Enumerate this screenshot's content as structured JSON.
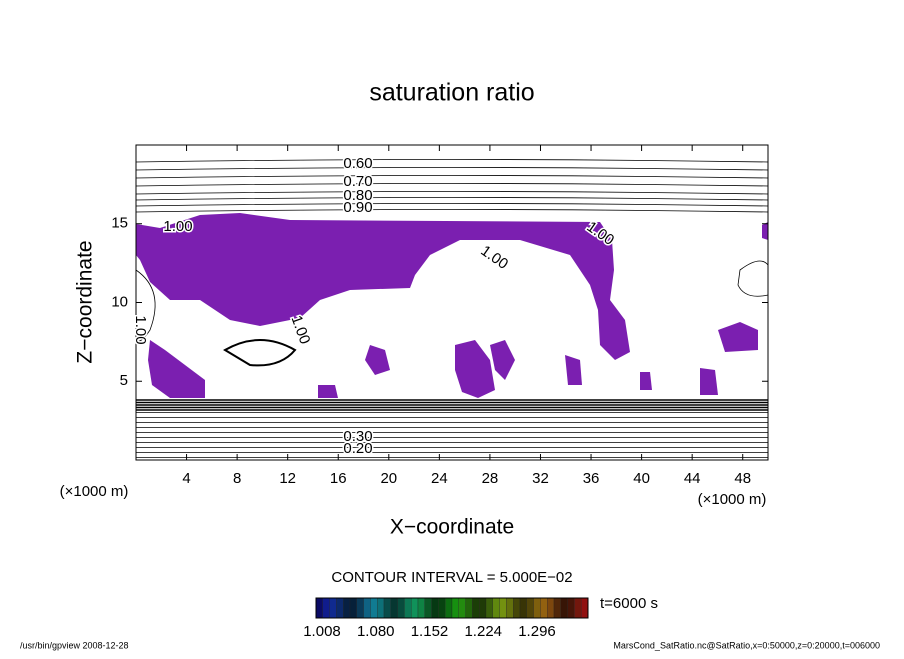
{
  "chart_data": {
    "type": "contour",
    "title": "saturation ratio",
    "xlabel": "X−coordinate",
    "ylabel": "Z−coordinate",
    "x_unit": "(×1000 m)",
    "y_unit": "(×1000 m)",
    "xlim": [
      0,
      50
    ],
    "ylim": [
      0,
      20
    ],
    "xticks": [
      4,
      8,
      12,
      16,
      20,
      24,
      28,
      32,
      36,
      40,
      44,
      48
    ],
    "yticks": [
      5,
      10,
      15
    ],
    "fill_color": "#7b1fb0",
    "contour_labels": [
      "0.60",
      "0.70",
      "0.80",
      "0.90",
      "1.00",
      "1.00",
      "1.00",
      "1.00",
      "1.00",
      "0.20",
      "0.30"
    ],
    "contour_interval": "CONTOUR INTERVAL = 5.000E−02",
    "colorbar_ticks": [
      1.008,
      {
        "value": 1.08,
        "label": "1.080"
      },
      1.152,
      1.224,
      1.296
    ],
    "time_label": "t=6000 s",
    "footer_left": "/usr/bin/gpview  2008-12-28",
    "footer_right": "MarsCond_SatRatio.nc@SatRatio,x=0:50000,z=0:20000,t=006000"
  }
}
